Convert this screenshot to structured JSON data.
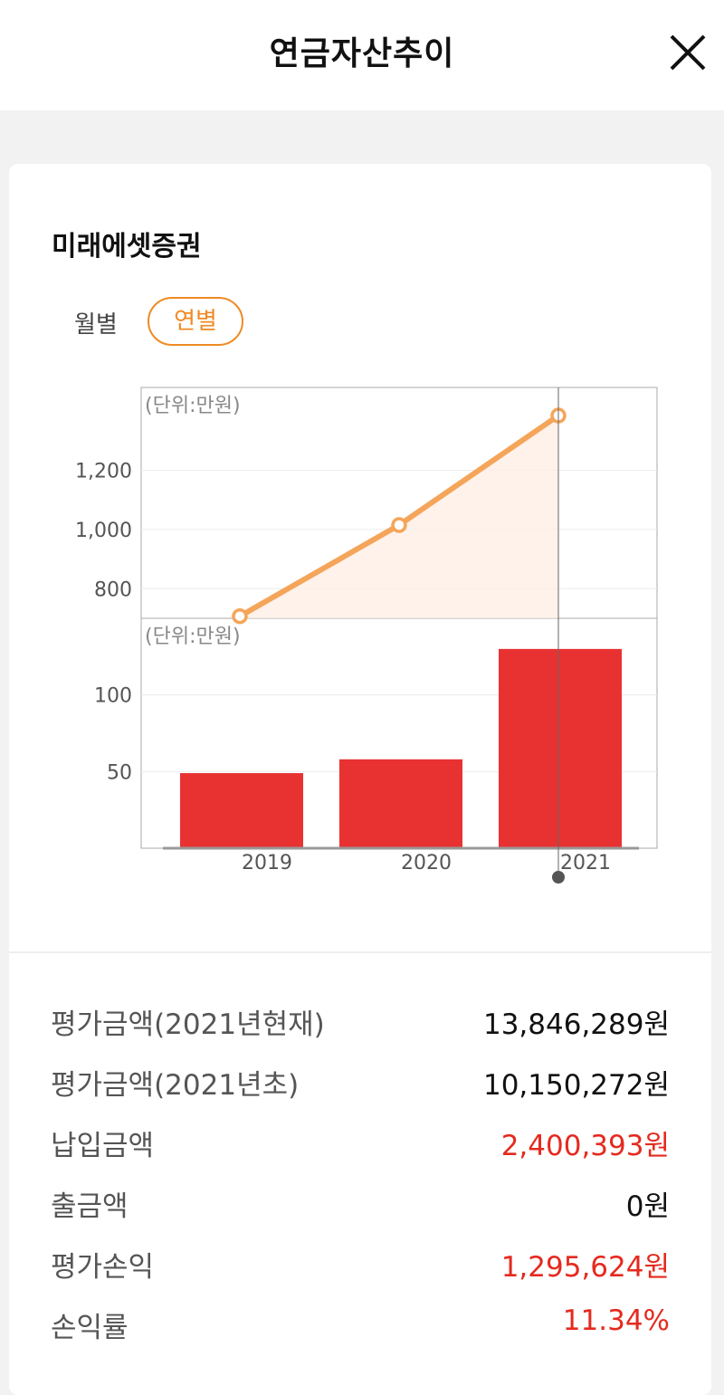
{
  "header": {
    "title": "연금자산추이"
  },
  "company": "미래에셋증권",
  "period_tabs": {
    "monthly": "월별",
    "yearly": "연별",
    "selected": "yearly"
  },
  "colors": {
    "accent": "#ef8a24",
    "line": "#f5a55a",
    "bar": "#e83232",
    "negative_red": "#e52a1e"
  },
  "chart_data": [
    {
      "type": "line",
      "unit_label": "(단위:만원)",
      "categories": [
        "2019",
        "2020",
        "2021"
      ],
      "values": [
        707,
        1015,
        1385
      ],
      "yticks": [
        "800",
        "1,000",
        "1,200"
      ],
      "ylim": [
        700,
        1480
      ]
    },
    {
      "type": "bar",
      "unit_label": "(단위:만원)",
      "categories": [
        "2019",
        "2020",
        "2021"
      ],
      "values": [
        49,
        58,
        130
      ],
      "yticks": [
        "50",
        "100"
      ],
      "ylim": [
        0,
        150
      ]
    }
  ],
  "summary": [
    {
      "label": "평가금액(2021년현재)",
      "value": "13,846,289원",
      "highlight": false
    },
    {
      "label": "평가금액(2021년초)",
      "value": "10,150,272원",
      "highlight": false
    },
    {
      "label": "납입금액",
      "value": "2,400,393원",
      "highlight": true
    },
    {
      "label": "출금액",
      "value": "0원",
      "highlight": false
    },
    {
      "label": "평가손익",
      "value": "1,295,624원",
      "highlight": true
    },
    {
      "label": "손익률",
      "value": "11.34%",
      "highlight": true
    }
  ]
}
